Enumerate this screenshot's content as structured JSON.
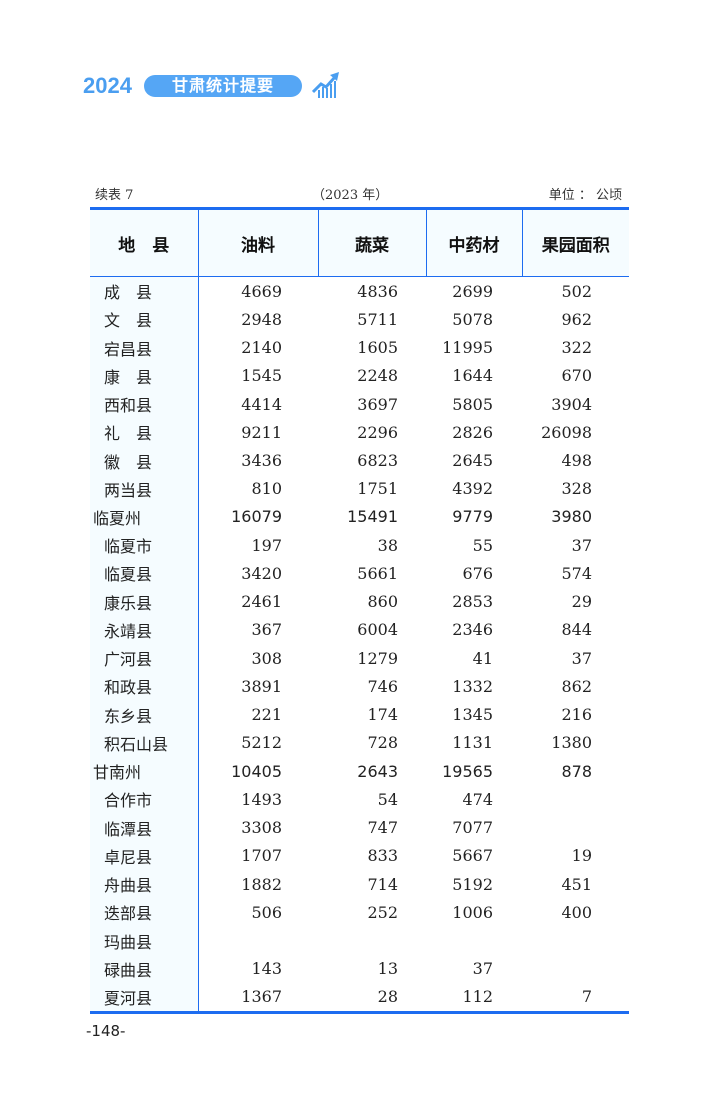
{
  "brand": {
    "year": "2024",
    "title": "甘肃统计提要",
    "icon": "chart-trend-up-icon",
    "color": "#4a9ef0"
  },
  "caption": {
    "left": "续表 7",
    "middle": "（2023 年）",
    "right": "单位 ： 公顷"
  },
  "table": {
    "headers": [
      "地　县",
      "油料",
      "蔬菜",
      "中药材",
      "果园面积"
    ],
    "rows": [
      {
        "name": "成　县",
        "values": [
          "4669",
          "4836",
          "2699",
          "502"
        ],
        "prefecture": false
      },
      {
        "name": "文　县",
        "values": [
          "2948",
          "5711",
          "5078",
          "962"
        ],
        "prefecture": false
      },
      {
        "name": "宕昌县",
        "values": [
          "2140",
          "1605",
          "11995",
          "322"
        ],
        "prefecture": false
      },
      {
        "name": "康　县",
        "values": [
          "1545",
          "2248",
          "1644",
          "670"
        ],
        "prefecture": false
      },
      {
        "name": "西和县",
        "values": [
          "4414",
          "3697",
          "5805",
          "3904"
        ],
        "prefecture": false
      },
      {
        "name": "礼　县",
        "values": [
          "9211",
          "2296",
          "2826",
          "26098"
        ],
        "prefecture": false
      },
      {
        "name": "徽　县",
        "values": [
          "3436",
          "6823",
          "2645",
          "498"
        ],
        "prefecture": false
      },
      {
        "name": "两当县",
        "values": [
          "810",
          "1751",
          "4392",
          "328"
        ],
        "prefecture": false
      },
      {
        "name": "临夏州",
        "values": [
          "16079",
          "15491",
          "9779",
          "3980"
        ],
        "prefecture": true
      },
      {
        "name": "临夏市",
        "values": [
          "197",
          "38",
          "55",
          "37"
        ],
        "prefecture": false
      },
      {
        "name": "临夏县",
        "values": [
          "3420",
          "5661",
          "676",
          "574"
        ],
        "prefecture": false
      },
      {
        "name": "康乐县",
        "values": [
          "2461",
          "860",
          "2853",
          "29"
        ],
        "prefecture": false
      },
      {
        "name": "永靖县",
        "values": [
          "367",
          "6004",
          "2346",
          "844"
        ],
        "prefecture": false
      },
      {
        "name": "广河县",
        "values": [
          "308",
          "1279",
          "41",
          "37"
        ],
        "prefecture": false
      },
      {
        "name": "和政县",
        "values": [
          "3891",
          "746",
          "1332",
          "862"
        ],
        "prefecture": false
      },
      {
        "name": "东乡县",
        "values": [
          "221",
          "174",
          "1345",
          "216"
        ],
        "prefecture": false
      },
      {
        "name": "积石山县",
        "values": [
          "5212",
          "728",
          "1131",
          "1380"
        ],
        "prefecture": false
      },
      {
        "name": "甘南州",
        "values": [
          "10405",
          "2643",
          "19565",
          "878"
        ],
        "prefecture": true
      },
      {
        "name": "合作市",
        "values": [
          "1493",
          "54",
          "474",
          ""
        ],
        "prefecture": false
      },
      {
        "name": "临潭县",
        "values": [
          "3308",
          "747",
          "7077",
          ""
        ],
        "prefecture": false
      },
      {
        "name": "卓尼县",
        "values": [
          "1707",
          "833",
          "5667",
          "19"
        ],
        "prefecture": false
      },
      {
        "name": "舟曲县",
        "values": [
          "1882",
          "714",
          "5192",
          "451"
        ],
        "prefecture": false
      },
      {
        "name": "迭部县",
        "values": [
          "506",
          "252",
          "1006",
          "400"
        ],
        "prefecture": false
      },
      {
        "name": "玛曲县",
        "values": [
          "",
          "",
          "",
          ""
        ],
        "prefecture": false
      },
      {
        "name": "碌曲县",
        "values": [
          "143",
          "13",
          "37",
          ""
        ],
        "prefecture": false
      },
      {
        "name": "夏河县",
        "values": [
          "1367",
          "28",
          "112",
          "7"
        ],
        "prefecture": false
      }
    ]
  },
  "page_number": "-148-"
}
